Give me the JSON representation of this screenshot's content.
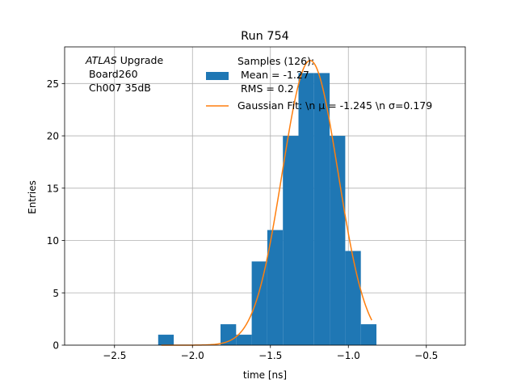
{
  "chart_data": {
    "type": "bar",
    "title": "Run 754",
    "xlabel": "time [ns]",
    "ylabel": "Entries",
    "xlim": [
      -2.82,
      -0.25
    ],
    "ylim": [
      0,
      28.5
    ],
    "grid": true,
    "x_ticks": [
      -2.5,
      -2.0,
      -1.5,
      -1.0,
      -0.5
    ],
    "x_tick_labels": [
      "−2.5",
      "−2.0",
      "−1.5",
      "−1.0",
      "−0.5"
    ],
    "y_ticks": [
      0,
      5,
      10,
      15,
      20,
      25
    ],
    "y_tick_labels": [
      "0",
      "5",
      "10",
      "15",
      "20",
      "25"
    ],
    "annotation": {
      "italic": "ATLAS",
      "rest": " Upgrade",
      "line2": " Board260",
      "line3": " Ch007 35dB"
    },
    "histogram": {
      "name": "Samples (126):",
      "name_line2": " Mean = -1.27",
      "name_line3": " RMS = 0.2",
      "color": "#1f77b4",
      "bins": [
        {
          "x0": -2.22,
          "x1": -2.12,
          "count": 1
        },
        {
          "x0": -1.82,
          "x1": -1.72,
          "count": 2
        },
        {
          "x0": -1.72,
          "x1": -1.62,
          "count": 1
        },
        {
          "x0": -1.62,
          "x1": -1.52,
          "count": 8
        },
        {
          "x0": -1.52,
          "x1": -1.42,
          "count": 11
        },
        {
          "x0": -1.42,
          "x1": -1.32,
          "count": 20
        },
        {
          "x0": -1.32,
          "x1": -1.22,
          "count": 26
        },
        {
          "x0": -1.22,
          "x1": -1.12,
          "count": 26
        },
        {
          "x0": -1.12,
          "x1": -1.02,
          "count": 20
        },
        {
          "x0": -1.02,
          "x1": -0.92,
          "count": 9
        },
        {
          "x0": -0.92,
          "x1": -0.82,
          "count": 2
        }
      ]
    },
    "fit": {
      "name": "Gaussian Fit: \\n μ = -1.245 \\n σ=0.179",
      "color": "#ff7f0e",
      "amplitude": 27.2,
      "mu": -1.245,
      "sigma": 0.179,
      "x_range": [
        -2.2,
        -0.85
      ]
    },
    "legend_position": "top-center"
  }
}
